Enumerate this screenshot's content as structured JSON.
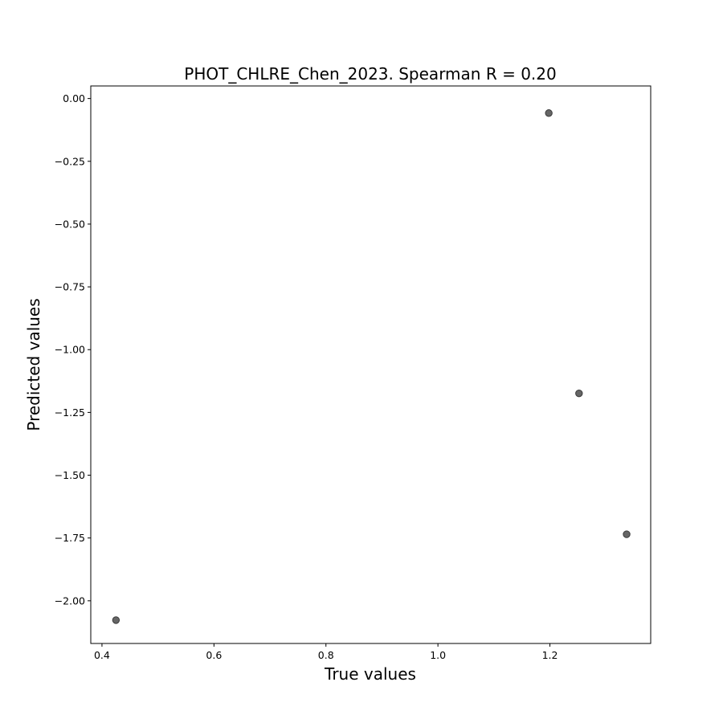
{
  "chart_data": {
    "type": "scatter",
    "title": "PHOT_CHLRE_Chen_2023. Spearman R = 0.20",
    "xlabel": "True values",
    "ylabel": "Predicted values",
    "xlim": [
      0.38,
      1.38
    ],
    "ylim": [
      -2.17,
      0.05
    ],
    "xticks": [
      0.4,
      0.6,
      0.8,
      1.0,
      1.2
    ],
    "xtick_labels": [
      "0.4",
      "0.6",
      "0.8",
      "1.0",
      "1.2"
    ],
    "yticks": [
      0.0,
      -0.25,
      -0.5,
      -0.75,
      -1.0,
      -1.25,
      -1.5,
      -1.75,
      -2.0
    ],
    "ytick_labels": [
      "0.00",
      "−0.25",
      "−0.50",
      "−0.75",
      "−1.00",
      "−1.25",
      "−1.50",
      "−1.75",
      "−2.00"
    ],
    "grid": false,
    "legend": false,
    "marker_color": "#666666",
    "marker_edge_color": "#3a3a3a",
    "points": [
      {
        "x": 1.198,
        "y": -0.058
      },
      {
        "x": 1.252,
        "y": -1.174
      },
      {
        "x": 1.337,
        "y": -1.735
      },
      {
        "x": 0.425,
        "y": -2.077
      }
    ]
  }
}
